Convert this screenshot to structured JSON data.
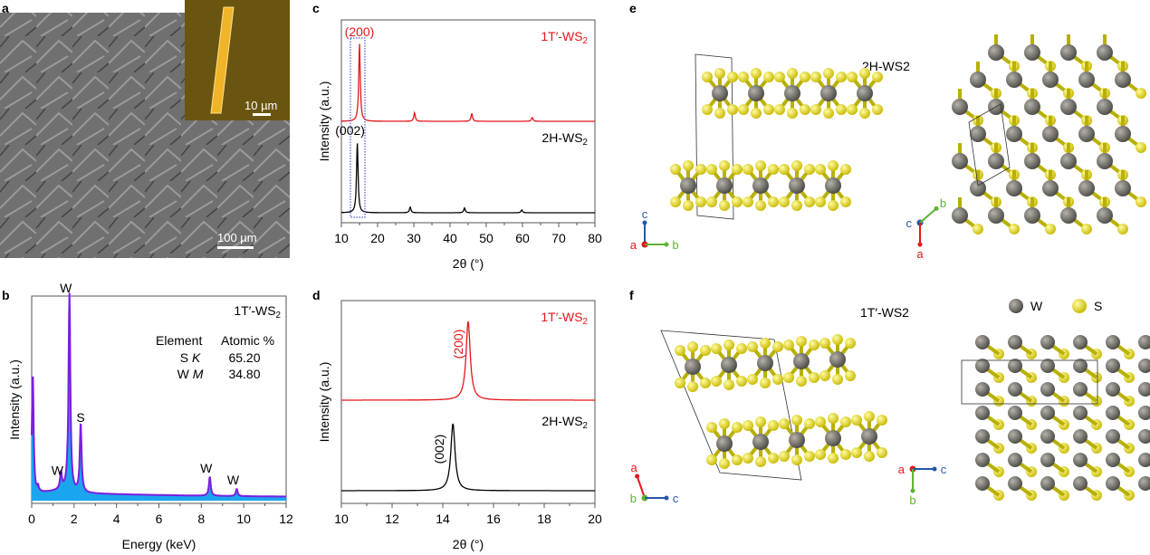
{
  "panels": {
    "a": "a",
    "b": "b",
    "c": "c",
    "d": "d",
    "e": "e",
    "f": "f"
  },
  "panel_a": {
    "inset_scale": "10 µm",
    "main_scale": "100 µm"
  },
  "chart_data": [
    {
      "id": "b",
      "type": "area",
      "xlabel": "Energy (keV)",
      "ylabel": "Intensity (a.u.)",
      "xlim": [
        0,
        12
      ],
      "xticks": [
        "0",
        "2",
        "4",
        "6",
        "8",
        "10",
        "12"
      ],
      "series_label": "1T′-WS2",
      "table": {
        "headers": [
          "Element",
          "Atomic %"
        ],
        "rows": [
          [
            "S K",
            "65.20"
          ],
          [
            "W M",
            "34.80"
          ]
        ]
      },
      "peaks": [
        {
          "x": 0.05,
          "h": 0.52
        },
        {
          "x": 0.27,
          "h": 0.03
        },
        {
          "x": 1.38,
          "h": 0.07,
          "label": "W"
        },
        {
          "x": 1.78,
          "h": 0.83,
          "label": "W"
        },
        {
          "x": 2.31,
          "h": 0.29,
          "label": "S"
        },
        {
          "x": 8.4,
          "h": 0.08,
          "label": "W"
        },
        {
          "x": 9.67,
          "h": 0.03,
          "label": "W"
        }
      ],
      "colors": {
        "line": "#7a1fe0",
        "fill": "#1aa5ee"
      }
    },
    {
      "id": "c",
      "type": "line",
      "xlabel": "2θ (°)",
      "ylabel": "Intensity (a.u.)",
      "xlim": [
        10,
        80
      ],
      "xticks": [
        "10",
        "20",
        "30",
        "40",
        "50",
        "60",
        "70",
        "80"
      ],
      "series": [
        {
          "name": "1T′-WS2",
          "color": "#e3161b",
          "peak_label": "(200)",
          "peaks": [
            [
              15,
              1.0
            ],
            [
              30.2,
              0.11
            ],
            [
              46,
              0.1
            ],
            [
              62.7,
              0.05
            ]
          ]
        },
        {
          "name": "2H-WS2",
          "color": "#000000",
          "peak_label": "(002)",
          "peaks": [
            [
              14.4,
              1.0
            ],
            [
              29,
              0.08
            ],
            [
              44,
              0.07
            ],
            [
              59.8,
              0.04
            ]
          ]
        }
      ]
    },
    {
      "id": "d",
      "type": "line",
      "xlabel": "2θ (°)",
      "ylabel": "Intensity (a.u.)",
      "xlim": [
        10,
        20
      ],
      "xticks": [
        "10",
        "12",
        "14",
        "16",
        "18",
        "20"
      ],
      "series": [
        {
          "name": "1T′-WS2",
          "color": "#e3161b",
          "peak_label": "(200)",
          "peaks": [
            [
              15,
              1.0
            ]
          ]
        },
        {
          "name": "2H-WS2",
          "color": "#000000",
          "peak_label": "(002)",
          "peaks": [
            [
              14.4,
              1.0
            ]
          ]
        }
      ]
    }
  ],
  "panel_e": {
    "title": "2H-WS2",
    "axes_left": [
      "c",
      "a",
      "b"
    ],
    "axes_right": [
      "c",
      "b",
      "a"
    ]
  },
  "panel_f": {
    "title": "1T′-WS2",
    "axes_left": [
      "a",
      "b",
      "c"
    ],
    "axes_right": [
      "a",
      "c",
      "b"
    ],
    "legend": [
      "W",
      "S"
    ]
  },
  "colors": {
    "W": "#6e6b64",
    "S": "#e6dc1c",
    "axis_a": "#e3161b",
    "axis_b": "#5db42f",
    "axis_c": "#2458a8"
  }
}
